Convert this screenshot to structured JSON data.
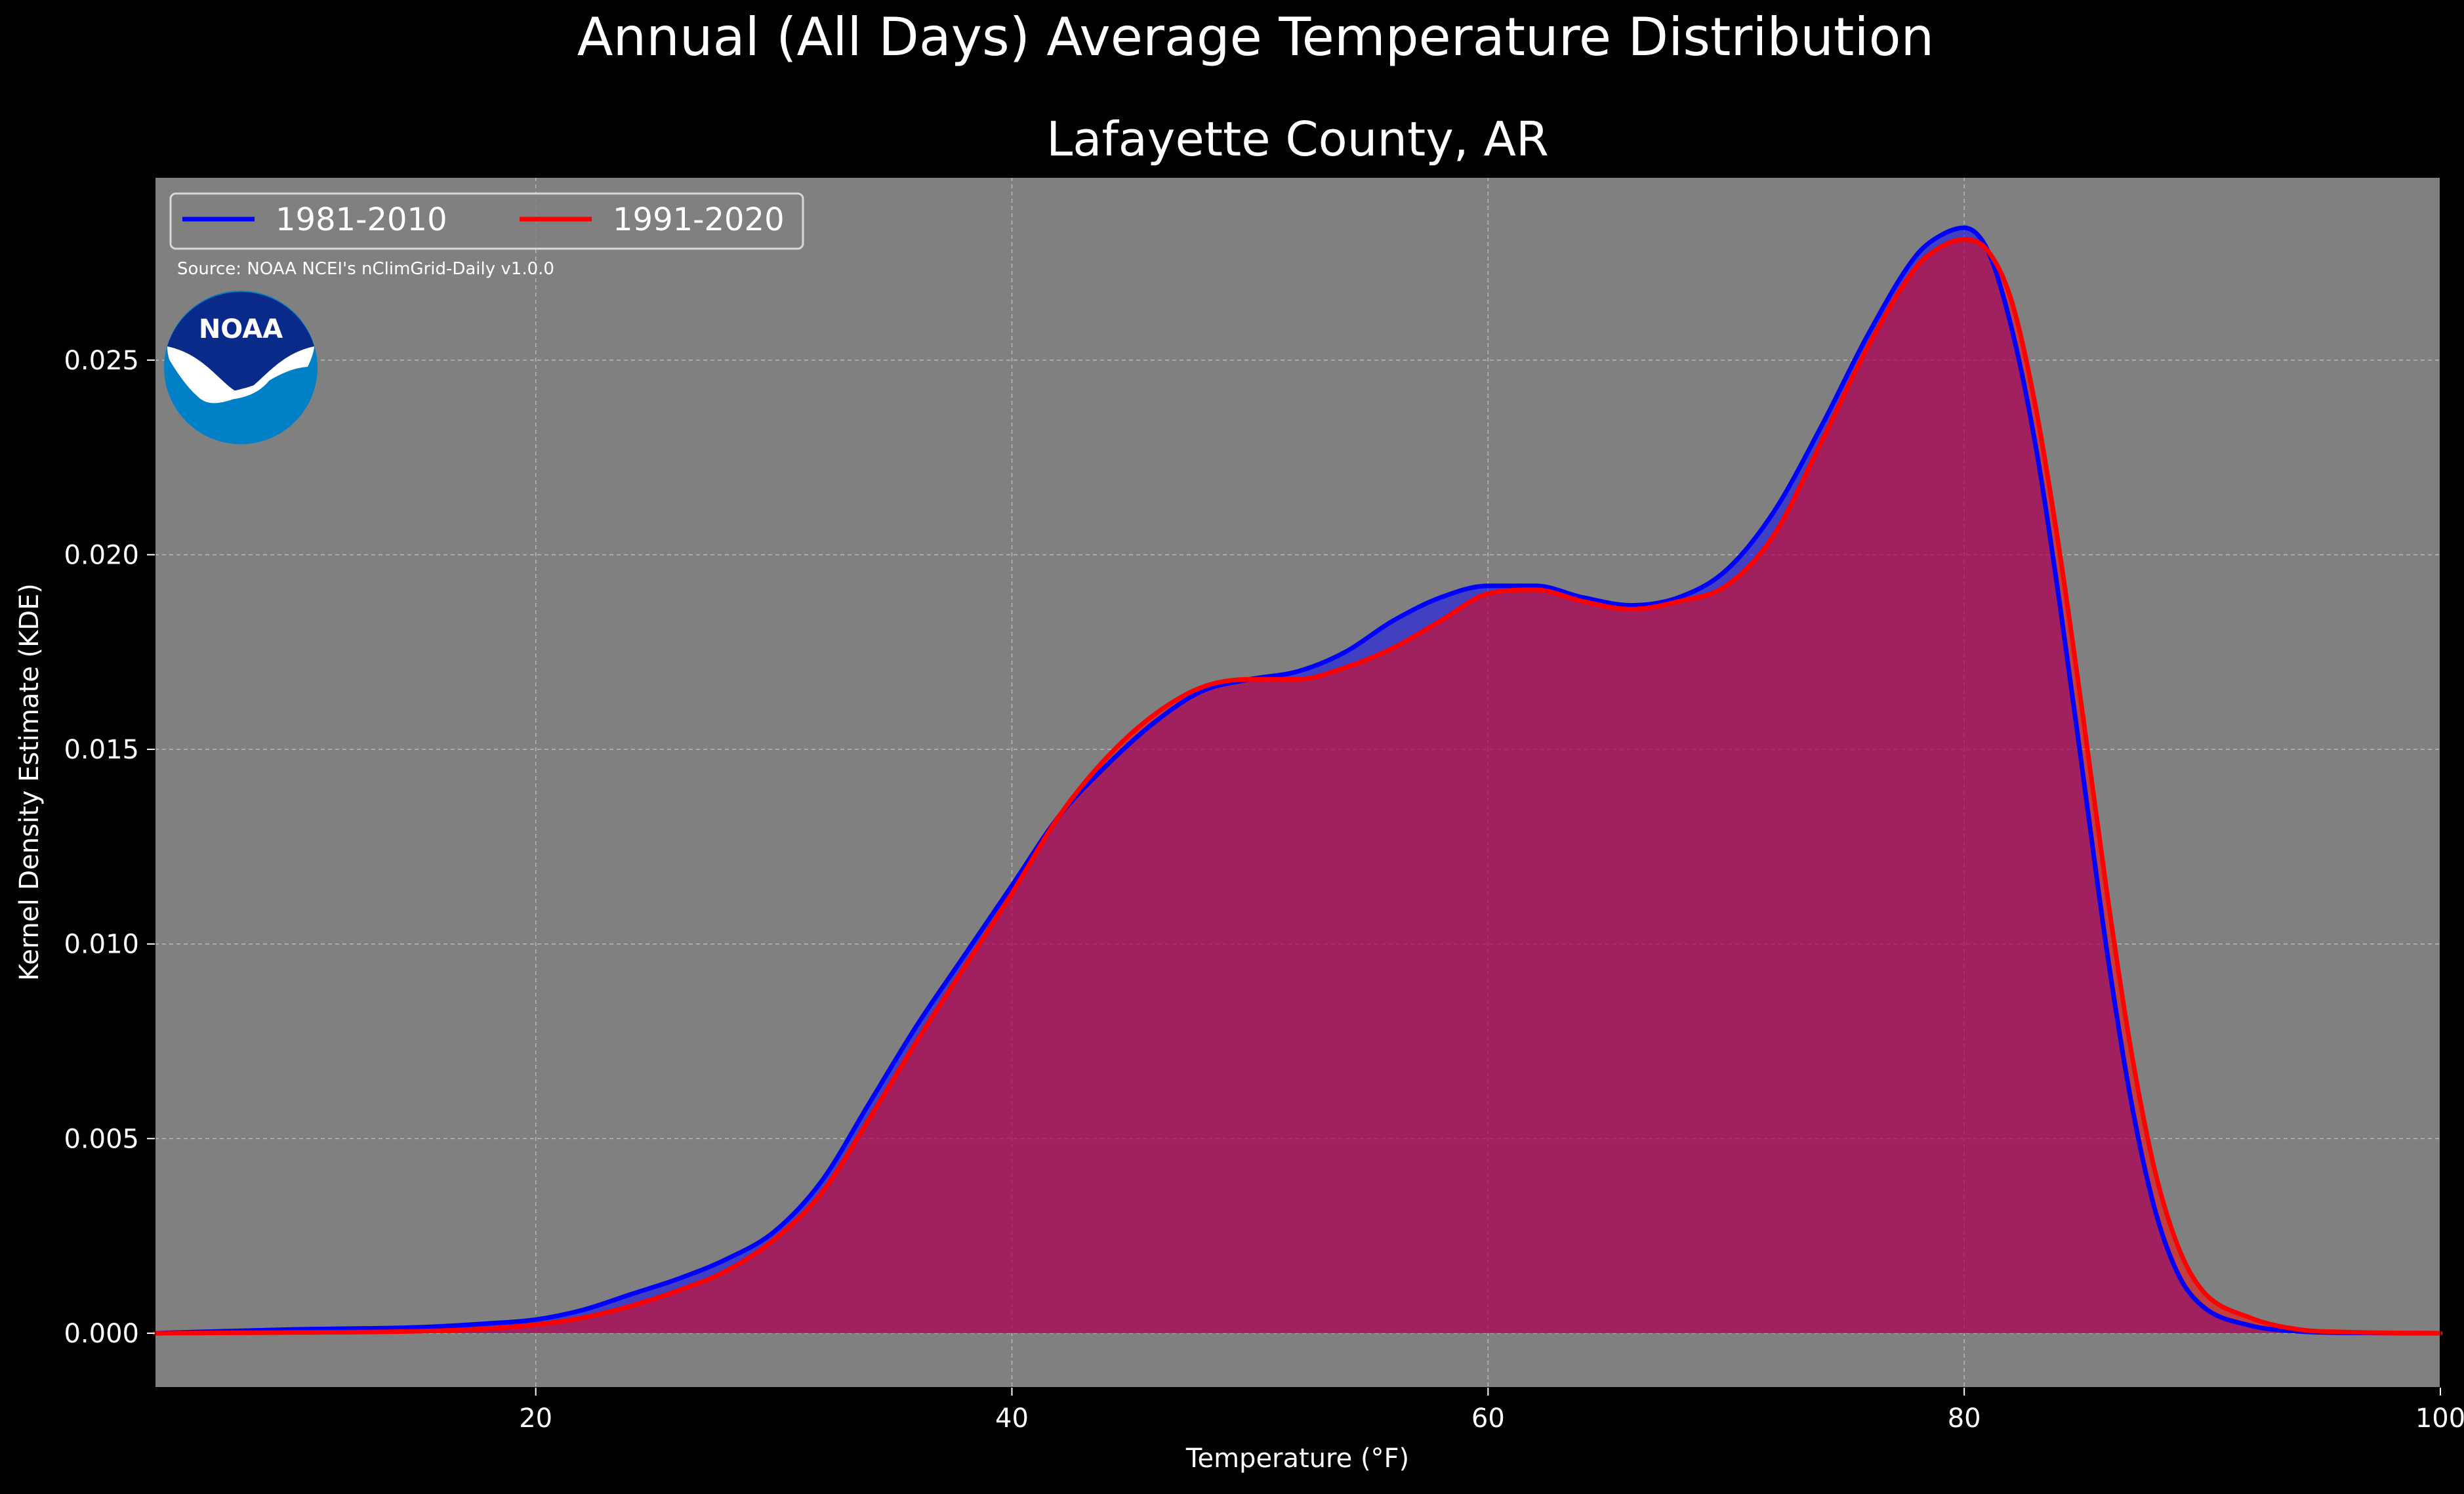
{
  "figure": {
    "suptitle": "Annual (All Days) Average Temperature Distribution",
    "source_note": "Source: NOAA NCEI's nClimGrid-Daily v1.0.0",
    "logo_text": "NOAA"
  },
  "colors": {
    "figure_background": "#000000",
    "plot_background": "#808080",
    "series_1981_2010": "#0000ff",
    "series_1991_2020": "#ff0000",
    "overlap_fill": "#9b1f5d",
    "logo_dark": "#0a2a8a",
    "logo_light": "#0080c6"
  },
  "chart_data": {
    "type": "area",
    "title": "Lafayette County, AR",
    "xlabel": "Temperature ($^\\circ$F)",
    "xlabel_display": "Temperature (°F)",
    "ylabel": "Kernel Density Estimate (KDE)",
    "xlim": [
      4,
      100
    ],
    "ylim": [
      -0.0014,
      0.0297
    ],
    "x_ticks": [
      20,
      40,
      60,
      80,
      100
    ],
    "x_tick_labels": [
      "20",
      "40",
      "60",
      "80",
      "100"
    ],
    "y_ticks": [
      0.0,
      0.005,
      0.01,
      0.015,
      0.02,
      0.025
    ],
    "y_tick_labels": [
      "0.000",
      "0.005",
      "0.010",
      "0.015",
      "0.020",
      "0.025"
    ],
    "grid": true,
    "legend_position": "top-left",
    "series": [
      {
        "name": "1981-2010",
        "color": "#0000ff",
        "x": [
          4,
          10,
          15,
          18,
          20,
          22,
          24,
          26,
          28,
          30,
          32,
          34,
          36,
          38,
          40,
          42,
          44,
          46,
          48,
          50,
          52,
          54,
          56,
          58,
          60,
          62,
          64,
          66,
          68,
          70,
          72,
          74,
          76,
          78,
          79,
          80,
          81,
          82,
          83,
          84,
          85,
          86,
          87,
          88,
          89,
          90,
          92,
          94,
          96,
          100
        ],
        "y": [
          0.0,
          0.0001,
          0.00015,
          0.00025,
          0.00035,
          0.0006,
          0.001,
          0.0014,
          0.0019,
          0.0026,
          0.0039,
          0.0059,
          0.0079,
          0.0097,
          0.0115,
          0.0133,
          0.0146,
          0.0157,
          0.0165,
          0.0168,
          0.017,
          0.0175,
          0.0183,
          0.0189,
          0.0192,
          0.0192,
          0.0189,
          0.0187,
          0.0189,
          0.0196,
          0.0211,
          0.0233,
          0.0257,
          0.0277,
          0.0282,
          0.0284,
          0.0278,
          0.0258,
          0.0228,
          0.0188,
          0.0143,
          0.0098,
          0.006,
          0.0032,
          0.0015,
          0.0007,
          0.0002,
          5e-05,
          1e-05,
          0.0
        ]
      },
      {
        "name": "1991-2020",
        "color": "#ff0000",
        "x": [
          4,
          10,
          15,
          18,
          20,
          22,
          24,
          26,
          28,
          30,
          32,
          34,
          36,
          38,
          40,
          42,
          44,
          46,
          48,
          50,
          52,
          54,
          56,
          58,
          60,
          62,
          64,
          66,
          68,
          70,
          72,
          74,
          76,
          78,
          79,
          80,
          81,
          82,
          83,
          84,
          85,
          86,
          87,
          88,
          89,
          90,
          92,
          94,
          96,
          100
        ],
        "y": [
          0.0,
          2e-05,
          5e-05,
          0.00012,
          0.00022,
          0.0004,
          0.0007,
          0.0011,
          0.0016,
          0.0024,
          0.0036,
          0.0055,
          0.0075,
          0.0094,
          0.0113,
          0.0133,
          0.0148,
          0.0159,
          0.0166,
          0.0168,
          0.0168,
          0.0171,
          0.0176,
          0.0183,
          0.019,
          0.0191,
          0.0188,
          0.0186,
          0.0188,
          0.0192,
          0.0205,
          0.0229,
          0.0254,
          0.0274,
          0.0279,
          0.0281,
          0.0278,
          0.0265,
          0.0238,
          0.0201,
          0.0158,
          0.0113,
          0.0073,
          0.0042,
          0.0022,
          0.0011,
          0.0004,
          0.0001,
          3e-05,
          0.0
        ]
      }
    ]
  }
}
